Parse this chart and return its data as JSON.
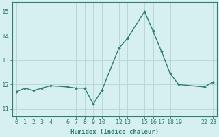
{
  "x": [
    0,
    1,
    2,
    3,
    4,
    6,
    7,
    8,
    9,
    10,
    12,
    13,
    15,
    16,
    17,
    18,
    19,
    22,
    23
  ],
  "y": [
    11.7,
    11.85,
    11.75,
    11.85,
    11.95,
    11.9,
    11.85,
    11.85,
    11.2,
    11.75,
    13.5,
    13.9,
    15.0,
    14.2,
    13.35,
    12.45,
    12.0,
    11.9,
    12.1
  ],
  "xticks": [
    0,
    1,
    2,
    3,
    4,
    6,
    7,
    8,
    9,
    10,
    12,
    13,
    15,
    16,
    17,
    18,
    19,
    22,
    23
  ],
  "xtick_labels": [
    "0",
    "1",
    "2",
    "3",
    "4",
    "6",
    "7",
    "8",
    "9",
    "10",
    "12",
    "13",
    "15",
    "16",
    "17",
    "18",
    "19",
    "22",
    "23"
  ],
  "yticks": [
    11,
    12,
    13,
    14,
    15
  ],
  "ylim": [
    10.7,
    15.4
  ],
  "xlim": [
    -0.5,
    23.5
  ],
  "xlabel": "Humidex (Indice chaleur)",
  "line_color": "#2e7d6e",
  "marker": "D",
  "marker_size": 1.8,
  "bg_color": "#d6f0ef",
  "grid_color_major": "#b8d4d2",
  "grid_color_minor": "#c8e4e2",
  "axis_color": "#2e7d6e",
  "label_color": "#2e7d6e",
  "line_width": 1.0,
  "tick_fontsize": 6.0,
  "xlabel_fontsize": 6.5
}
